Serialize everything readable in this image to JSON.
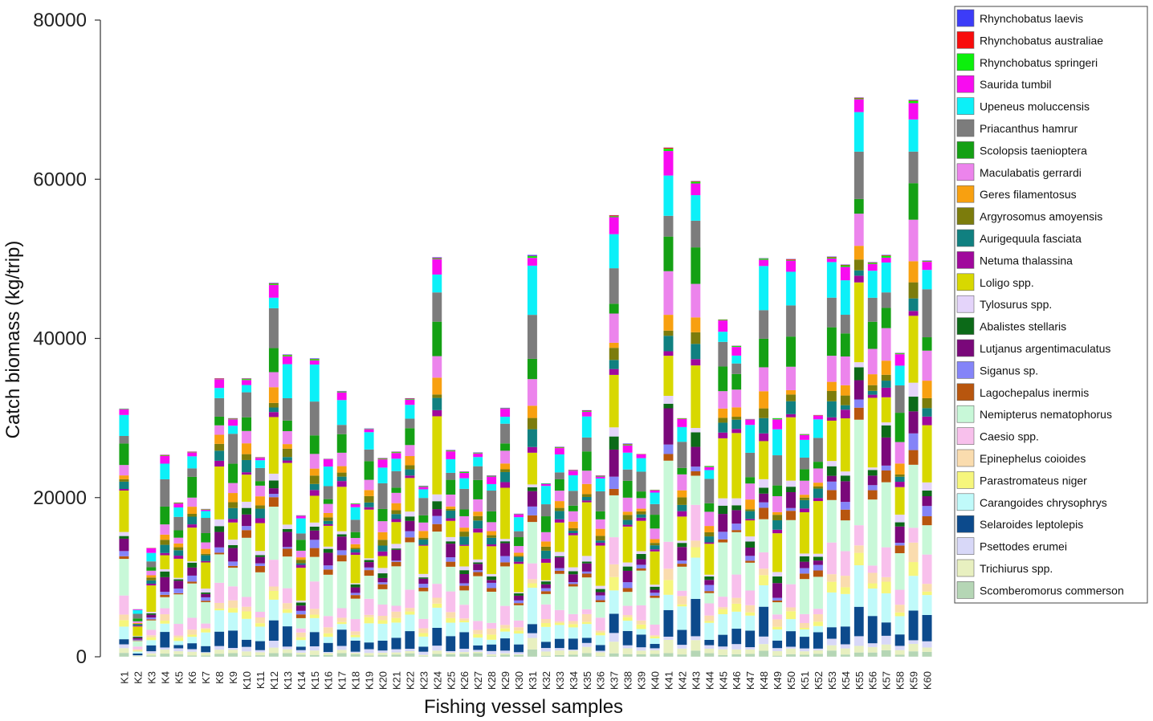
{
  "chart_data": {
    "type": "bar",
    "stacked": true,
    "xlabel": "Fishing vessel samples",
    "ylabel": "Catch biomass (kg/trip)",
    "ylim": [
      0,
      80000
    ],
    "yticks": [
      0,
      20000,
      40000,
      60000,
      80000
    ],
    "grid": false,
    "legend_position": "right",
    "categories": [
      "K1",
      "K2",
      "K3",
      "K4",
      "K5",
      "K6",
      "K7",
      "K8",
      "K9",
      "K10",
      "K11",
      "K12",
      "K13",
      "K14",
      "K15",
      "K16",
      "K17",
      "K18",
      "K19",
      "K20",
      "K21",
      "K22",
      "K23",
      "K24",
      "K25",
      "K26",
      "K27",
      "K28",
      "K29",
      "K30",
      "K31",
      "K32",
      "K33",
      "K34",
      "K35",
      "K36",
      "K37",
      "K38",
      "K39",
      "K40",
      "K41",
      "K42",
      "K43",
      "K44",
      "K45",
      "K46",
      "K47",
      "K48",
      "K49",
      "K50",
      "K51",
      "K52",
      "K53",
      "K54",
      "K55",
      "K56",
      "K57",
      "K58",
      "K59",
      "K60"
    ],
    "totals": [
      31200,
      6000,
      13700,
      25400,
      19400,
      25800,
      18600,
      35000,
      30000,
      35000,
      25100,
      47000,
      38000,
      17800,
      37500,
      24900,
      33400,
      19300,
      28700,
      25000,
      25800,
      32500,
      21500,
      50200,
      26000,
      23300,
      25700,
      22800,
      31300,
      18000,
      50500,
      21800,
      26400,
      23500,
      31000,
      22800,
      55500,
      26800,
      25500,
      21000,
      64000,
      30000,
      59800,
      24000,
      42400,
      39100,
      29900,
      50100,
      30000,
      50000,
      28000,
      30400,
      50300,
      49300,
      70300,
      49600,
      50500,
      38200,
      70000,
      49800
    ],
    "series": [
      {
        "name": "Scomberomorus commerson",
        "color": "#b5d6b5"
      },
      {
        "name": "Trichiurus spp.",
        "color": "#e8f0c0"
      },
      {
        "name": "Psettodes erumei",
        "color": "#d8d8f8"
      },
      {
        "name": "Selaroides leptolepis",
        "color": "#0c4a8c"
      },
      {
        "name": "Carangoides chrysophrys",
        "color": "#c0fafa"
      },
      {
        "name": "Parastromateus niger",
        "color": "#f6f67c"
      },
      {
        "name": "Epinephelus coioides",
        "color": "#fadcae"
      },
      {
        "name": "Caesio spp.",
        "color": "#f8c0ec"
      },
      {
        "name": "Nemipterus nematophorus",
        "color": "#c8f8d8"
      },
      {
        "name": "Lagochepalus inermis",
        "color": "#b8560e"
      },
      {
        "name": "Siganus sp.",
        "color": "#8484f8"
      },
      {
        "name": "Lutjanus argentimaculatus",
        "color": "#7a087a"
      },
      {
        "name": "Abalistes stellaris",
        "color": "#0c6a18"
      },
      {
        "name": "Tylosurus spp.",
        "color": "#e4d4fa"
      },
      {
        "name": "Loligo spp.",
        "color": "#d8d800"
      },
      {
        "name": "Netuma thalassina",
        "color": "#a0089c"
      },
      {
        "name": "Aurigequula fasciata",
        "color": "#108080"
      },
      {
        "name": "Argyrosomus amoyensis",
        "color": "#7c7c0c"
      },
      {
        "name": "Geres filamentosus",
        "color": "#f8a010"
      },
      {
        "name": "Maculabatis gerrardi",
        "color": "#ec84ec"
      },
      {
        "name": "Scolopsis taeniopter a",
        "color": "#14a014"
      },
      {
        "name": "Priacanthus hamrur",
        "color": "#7c7c7c"
      },
      {
        "name": "Upeneus moluccensis",
        "color": "#0cf0f8"
      },
      {
        "name": "Saurida tumbil",
        "color": "#f80cf0"
      },
      {
        "name": "Rhynchobatus springeri",
        "color": "#0cf00c"
      },
      {
        "name": "Rhynchobatus australiae",
        "color": "#f80c0c"
      },
      {
        "name": "Rhynchobatus laevis",
        "color": "#3c3cf8"
      }
    ]
  },
  "legend_items": [
    "Rhynchobatus laevis",
    "Rhynchobatus australiae",
    "Rhynchobatus springeri",
    "Saurida tumbil",
    "Upeneus moluccensis",
    "Priacanthus hamrur",
    "Scolopsis taenioptera",
    "Maculabatis gerrardi",
    "Geres filamentosus",
    "Argyrosomus amoyensis",
    "Aurigequula fasciata",
    "Netuma thalassina",
    "Loligo spp.",
    "Tylosurus spp.",
    "Abalistes stellaris",
    "Lutjanus argentimaculatus",
    "Siganus sp.",
    "Lagochepalus inermis",
    "Nemipterus nematophorus",
    "Caesio spp.",
    "Epinephelus coioides",
    "Parastromateus niger",
    "Carangoides chrysophrys",
    "Selaroides leptolepis",
    "Psettodes erumei",
    "Trichiurus spp.",
    "Scomberomorus commerson"
  ],
  "legend_colors": [
    "#3c3cf8",
    "#f80c0c",
    "#0cf00c",
    "#f80cf0",
    "#0cf0f8",
    "#7c7c7c",
    "#14a014",
    "#ec84ec",
    "#f8a010",
    "#7c7c0c",
    "#108080",
    "#a0089c",
    "#d8d800",
    "#e4d4fa",
    "#0c6a18",
    "#7a087a",
    "#8484f8",
    "#b8560e",
    "#c8f8d8",
    "#f8c0ec",
    "#fadcae",
    "#f6f67c",
    "#c0fafa",
    "#0c4a8c",
    "#d8d8f8",
    "#e8f0c0",
    "#b5d6b5"
  ]
}
